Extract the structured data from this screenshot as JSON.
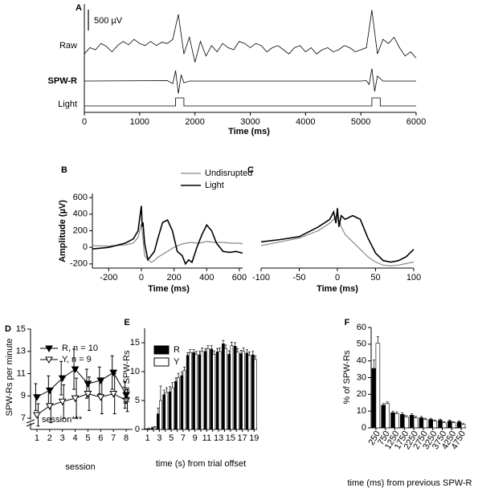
{
  "chart_data": [
    {
      "panel": "A",
      "type": "trace",
      "xlabel": "Time (ms)",
      "xlim": [
        0,
        6000
      ],
      "xticks": [
        0,
        1000,
        2000,
        3000,
        4000,
        5000,
        6000
      ],
      "scale_bar": {
        "value": 500,
        "label": "500 µV"
      },
      "series": [
        {
          "name": "Raw",
          "color": "#000000",
          "x": [
            0,
            100,
            200,
            300,
            400,
            500,
            600,
            700,
            800,
            900,
            1000,
            1100,
            1200,
            1300,
            1400,
            1500,
            1600,
            1700,
            1800,
            1900,
            2000,
            2100,
            2200,
            2300,
            2400,
            2500,
            2600,
            2700,
            2800,
            2900,
            3000,
            3100,
            3200,
            3300,
            3400,
            3500,
            3600,
            3700,
            3800,
            3900,
            4000,
            4100,
            4200,
            4300,
            4400,
            4500,
            4600,
            4700,
            4800,
            4900,
            5000,
            5100,
            5200,
            5300,
            5400,
            5500,
            5600,
            5700,
            5800,
            5900,
            6000
          ],
          "values": [
            -100,
            50,
            0,
            150,
            80,
            -50,
            100,
            200,
            120,
            250,
            150,
            100,
            200,
            100,
            180,
            150,
            250,
            850,
            -100,
            300,
            -300,
            200,
            -150,
            100,
            -50,
            150,
            50,
            0,
            200,
            150,
            50,
            150,
            100,
            -50,
            50,
            100,
            0,
            -100,
            50,
            100,
            -50,
            50,
            -100,
            0,
            50,
            -50,
            0,
            100,
            50,
            -50,
            0,
            50,
            950,
            -100,
            250,
            150,
            300,
            50,
            -150,
            -50,
            -200
          ]
        },
        {
          "name": "SPW-R",
          "color": "#000000",
          "x": [
            0,
            1500,
            1600,
            1650,
            1700,
            1750,
            1800,
            1900,
            5000,
            5100,
            5150,
            5200,
            5250,
            5300,
            5400,
            6000
          ],
          "values": [
            0,
            10,
            -60,
            250,
            -300,
            150,
            -40,
            0,
            0,
            10,
            -80,
            300,
            -250,
            120,
            0,
            0
          ]
        },
        {
          "name": "Light",
          "color": "#000000",
          "x": [
            0,
            1650,
            1650,
            1800,
            1800,
            5200,
            5200,
            5350,
            5350,
            6000
          ],
          "values": [
            0,
            0,
            1,
            1,
            0,
            0,
            1,
            1,
            0,
            0
          ]
        }
      ]
    },
    {
      "panel": "B",
      "type": "line",
      "xlabel": "Time (ms)",
      "ylabel": "Amplitude (µV)",
      "xlim": [
        -300,
        620
      ],
      "xticks": [
        -200,
        0,
        200,
        400,
        600
      ],
      "ylim": [
        -250,
        650
      ],
      "yticks": [
        -200,
        0,
        200,
        400,
        600
      ],
      "series": [
        {
          "name": "Undisrupted",
          "color": "#888888",
          "x": [
            -300,
            -200,
            -100,
            -50,
            -20,
            -10,
            0,
            10,
            20,
            40,
            60,
            80,
            100,
            150,
            200,
            250,
            300,
            350,
            400,
            450,
            500,
            550,
            600,
            620
          ],
          "values": [
            20,
            15,
            30,
            50,
            120,
            200,
            280,
            100,
            -100,
            -150,
            -180,
            -160,
            -120,
            -60,
            0,
            40,
            60,
            50,
            70,
            60,
            60,
            50,
            50,
            40
          ]
        },
        {
          "name": "Light",
          "color": "#000000",
          "x": [
            -300,
            -200,
            -100,
            -50,
            -20,
            -10,
            0,
            5,
            10,
            20,
            40,
            60,
            80,
            100,
            130,
            160,
            190,
            220,
            250,
            270,
            290,
            310,
            340,
            370,
            400,
            430,
            460,
            500,
            540,
            580,
            620
          ],
          "values": [
            -20,
            0,
            50,
            100,
            200,
            350,
            500,
            250,
            300,
            50,
            -150,
            -100,
            -50,
            100,
            300,
            330,
            200,
            -50,
            -100,
            -200,
            -150,
            -180,
            0,
            150,
            270,
            200,
            50,
            -50,
            -60,
            -50,
            -70
          ]
        }
      ]
    },
    {
      "panel": "C",
      "type": "line",
      "xlabel": "Time (ms)",
      "xlim": [
        -100,
        100
      ],
      "xticks": [
        -100,
        -50,
        0,
        50,
        100
      ],
      "ylim": [
        -300,
        600
      ],
      "series": [
        {
          "color": "#888888",
          "x": [
            -100,
            -75,
            -50,
            -25,
            -10,
            -5,
            0,
            5,
            10,
            20,
            30,
            40,
            50,
            60,
            70,
            80,
            90,
            100
          ],
          "values": [
            0,
            50,
            100,
            200,
            300,
            350,
            420,
            250,
            150,
            50,
            -50,
            -150,
            -220,
            -260,
            -270,
            -260,
            -240,
            -220
          ]
        },
        {
          "color": "#000000",
          "x": [
            -100,
            -75,
            -50,
            -25,
            -10,
            -5,
            -2,
            0,
            2,
            5,
            10,
            20,
            30,
            40,
            50,
            60,
            70,
            80,
            90,
            100
          ],
          "values": [
            50,
            80,
            120,
            250,
            350,
            450,
            300,
            500,
            250,
            400,
            350,
            400,
            350,
            100,
            -100,
            -200,
            -220,
            -200,
            -150,
            -50
          ]
        }
      ]
    },
    {
      "panel": "D",
      "type": "line",
      "xlabel": "session",
      "ylabel": "SPW-Rs per minute",
      "annotation": "session***",
      "categories": [
        1,
        2,
        3,
        4,
        5,
        6,
        7,
        8
      ],
      "ylim": [
        6,
        15
      ],
      "yticks": [
        7,
        9,
        11,
        13,
        15
      ],
      "series": [
        {
          "name": "R, n = 10",
          "color": "#000000",
          "marker": "filled",
          "values": [
            8.9,
            9.5,
            10.6,
            11.4,
            10.1,
            10.4,
            11.1,
            9.1
          ],
          "errors": [
            1.2,
            1.3,
            1.5,
            1.8,
            1.3,
            1.2,
            1.5,
            1.2
          ]
        },
        {
          "name": "Y, n = 9",
          "color": "#000000",
          "marker": "open",
          "values": [
            7.3,
            8.1,
            8.5,
            8.8,
            9.2,
            8.9,
            9.2,
            8.6
          ],
          "errors": [
            1.0,
            1.5,
            1.5,
            1.8,
            1.5,
            1.5,
            1.8,
            1.0
          ]
        }
      ]
    },
    {
      "panel": "E",
      "type": "bar",
      "xlabel": "time (s) from trial offset",
      "ylabel": "% of SPW-Rs",
      "categories": [
        1,
        null,
        3,
        null,
        5,
        null,
        7,
        null,
        9,
        null,
        11,
        null,
        13,
        null,
        15,
        null,
        17,
        null,
        19
      ],
      "ylim": [
        0,
        17.5
      ],
      "yticks": [
        0,
        5,
        10,
        15
      ],
      "series": [
        {
          "name": "R",
          "color": "#000000",
          "values": [
            0,
            0.2,
            2.7,
            6.0,
            6.5,
            8.3,
            9.3,
            12.8,
            13.3,
            12.9,
            13.5,
            13.9,
            13.4,
            14.8,
            13.0,
            14.4,
            13.1,
            13.2,
            12.9
          ],
          "errors": [
            0.1,
            0.2,
            1.0,
            0.8,
            0.9,
            0.6,
            0.6,
            0.5,
            0.5,
            0.6,
            0.5,
            0.6,
            0.6,
            0.6,
            0.6,
            0.6,
            0.6,
            0.6,
            0.6
          ]
        },
        {
          "name": "Y",
          "color": "#ffffff",
          "values": [
            0.1,
            0.3,
            5.0,
            6.4,
            7.2,
            9.0,
            10.2,
            13.3,
            13.0,
            13.5,
            14.0,
            13.0,
            13.5,
            14.0,
            14.5,
            13.4,
            13.5,
            12.8,
            12.1
          ],
          "errors": [
            0.1,
            0.2,
            2.5,
            0.8,
            0.9,
            0.7,
            0.6,
            0.5,
            0.5,
            0.6,
            0.5,
            0.6,
            0.6,
            0.6,
            0.6,
            0.6,
            0.6,
            0.6,
            0.6
          ]
        }
      ]
    },
    {
      "panel": "F",
      "type": "bar",
      "xlabel": "time (ms) from previous SPW-R",
      "ylabel": "% of SPW-Rs",
      "categories": [
        250,
        750,
        1250,
        1750,
        2250,
        2750,
        3250,
        3750,
        4250,
        4750
      ],
      "ylim": [
        0,
        60
      ],
      "yticks": [
        0,
        10,
        20,
        30,
        40,
        50,
        60
      ],
      "series": [
        {
          "color": "#000000",
          "values": [
            35.5,
            13.5,
            9,
            8,
            7.5,
            6,
            5,
            4.5,
            4,
            3.5
          ],
          "errors": [
            5,
            1,
            1,
            1,
            0.8,
            0.8,
            0.7,
            0.7,
            0.7,
            0.7
          ]
        },
        {
          "color": "#ffffff",
          "values": [
            50.5,
            14.5,
            8.5,
            6.5,
            6,
            5,
            4,
            3,
            3,
            2
          ],
          "errors": [
            4,
            1,
            1,
            0.8,
            0.8,
            0.7,
            0.7,
            0.6,
            0.6,
            0.5
          ]
        }
      ]
    }
  ]
}
